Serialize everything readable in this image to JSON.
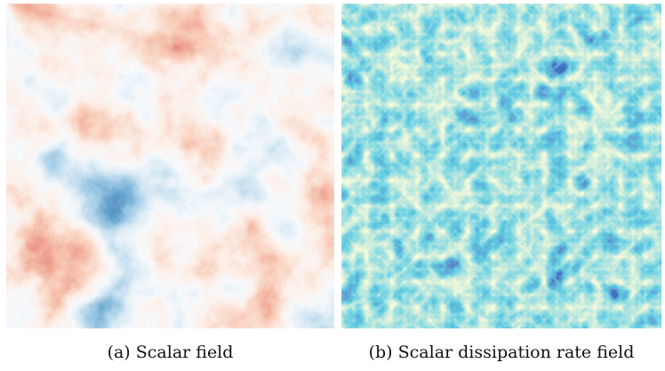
{
  "panels": [
    {
      "caption": "(a) Scalar field",
      "colormap": "red-blue diverging",
      "colors": [
        "#08306b",
        "#2c6aa8",
        "#6aa7d0",
        "#b9d7ea",
        "#eef3f8",
        "#f9ddd0",
        "#f3a688",
        "#e1664f",
        "#bf2a2b",
        "#8b0a15"
      ]
    },
    {
      "caption": "(b) Scalar dissipation rate field",
      "colormap": "yellow-green-blue",
      "colors": [
        "#ffffd9",
        "#edf8b1",
        "#c7e9b4",
        "#7fcdbb",
        "#41b6c4",
        "#1d91c0",
        "#225ea8",
        "#0c2c84"
      ]
    }
  ]
}
